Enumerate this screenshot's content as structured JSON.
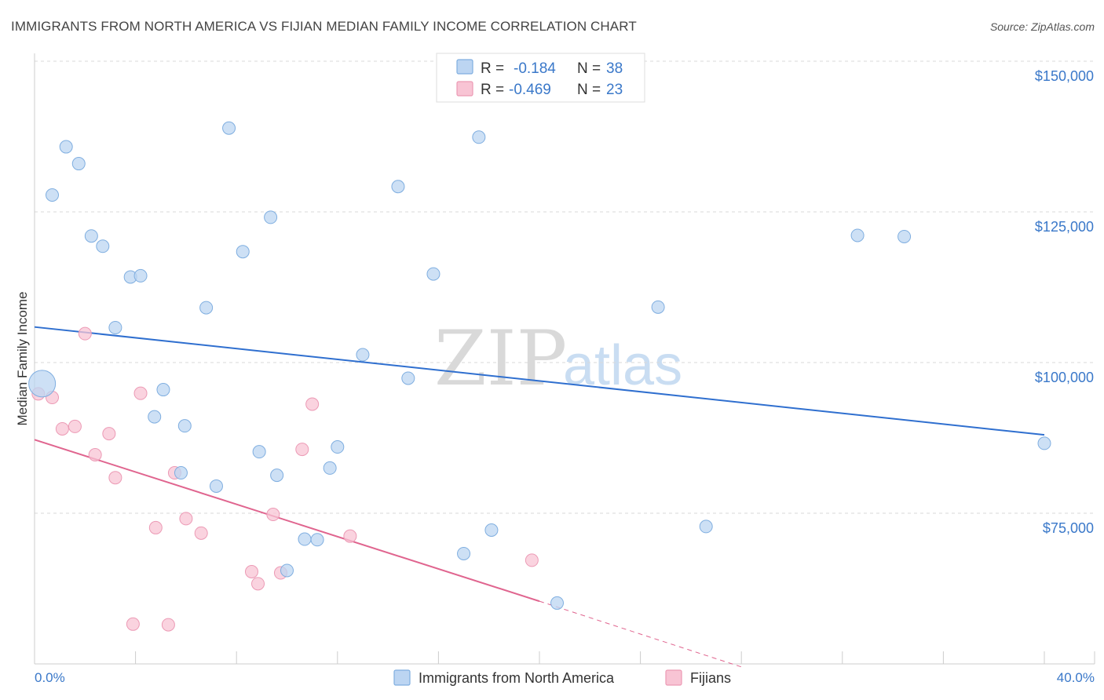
{
  "header": {
    "title": "IMMIGRANTS FROM NORTH AMERICA VS FIJIAN MEDIAN FAMILY INCOME CORRELATION CHART",
    "source": "Source: ZipAtlas.com"
  },
  "watermark": {
    "zip": "ZIP",
    "atlas": "atlas"
  },
  "legend": {
    "series1": {
      "r_label": "R =",
      "r_value": "-0.184",
      "n_label": "N =",
      "n_value": "38"
    },
    "series2": {
      "r_label": "R =",
      "r_value": "-0.469",
      "n_label": "N =",
      "n_value": "23"
    }
  },
  "bottom_legend": {
    "series1": "Immigrants from North America",
    "series2": "Fijians"
  },
  "colors": {
    "blue_fill": "#bcd5f2",
    "blue_stroke": "#7faee0",
    "blue_line": "#2f6fcf",
    "pink_fill": "#f8c4d4",
    "pink_stroke": "#ec9ab5",
    "pink_line": "#e0658f",
    "grid": "#d9d9d9",
    "tick_text": "#3a78c9"
  },
  "chart_data": {
    "type": "scatter",
    "title": "IMMIGRANTS FROM NORTH AMERICA VS FIJIAN MEDIAN FAMILY INCOME CORRELATION CHART",
    "xlabel": "",
    "ylabel": "Median Family Income",
    "xlim": [
      0,
      40
    ],
    "ylim": [
      50000,
      152500
    ],
    "x_tick_labels": [
      "0.0%",
      "40.0%"
    ],
    "y_ticks": [
      {
        "value": 75000,
        "label": "$75,000"
      },
      {
        "value": 100000,
        "label": "$100,000"
      },
      {
        "value": 125000,
        "label": "$125,000"
      },
      {
        "value": 150000,
        "label": "$150,000"
      }
    ],
    "series": [
      {
        "name": "Immigrants from North America",
        "color": "blue",
        "R": -0.184,
        "N": 38,
        "points": [
          {
            "x": 0.3,
            "y": 96500,
            "big": true
          },
          {
            "x": 0.7,
            "y": 127800
          },
          {
            "x": 1.25,
            "y": 135800
          },
          {
            "x": 1.75,
            "y": 133000
          },
          {
            "x": 2.25,
            "y": 121000
          },
          {
            "x": 2.7,
            "y": 119300
          },
          {
            "x": 3.2,
            "y": 105800
          },
          {
            "x": 3.8,
            "y": 114200
          },
          {
            "x": 4.2,
            "y": 114400
          },
          {
            "x": 5.1,
            "y": 95500
          },
          {
            "x": 4.75,
            "y": 91000
          },
          {
            "x": 5.95,
            "y": 89500
          },
          {
            "x": 5.8,
            "y": 81700
          },
          {
            "x": 6.8,
            "y": 109100
          },
          {
            "x": 7.2,
            "y": 79500
          },
          {
            "x": 7.7,
            "y": 138900
          },
          {
            "x": 8.25,
            "y": 118400
          },
          {
            "x": 8.9,
            "y": 85200
          },
          {
            "x": 9.35,
            "y": 124100
          },
          {
            "x": 9.6,
            "y": 81300
          },
          {
            "x": 10.0,
            "y": 65500
          },
          {
            "x": 10.7,
            "y": 70700
          },
          {
            "x": 11.2,
            "y": 70600
          },
          {
            "x": 11.7,
            "y": 82500
          },
          {
            "x": 12.0,
            "y": 86000
          },
          {
            "x": 13.0,
            "y": 101300
          },
          {
            "x": 14.4,
            "y": 129200
          },
          {
            "x": 14.8,
            "y": 97400
          },
          {
            "x": 15.8,
            "y": 114700
          },
          {
            "x": 17.0,
            "y": 68300
          },
          {
            "x": 17.6,
            "y": 137400
          },
          {
            "x": 18.1,
            "y": 72200
          },
          {
            "x": 20.7,
            "y": 60100
          },
          {
            "x": 24.7,
            "y": 109200
          },
          {
            "x": 26.6,
            "y": 72800
          },
          {
            "x": 32.6,
            "y": 121100
          },
          {
            "x": 34.45,
            "y": 120900
          },
          {
            "x": 40.0,
            "y": 86600
          }
        ],
        "trend": {
          "x0": 0,
          "y0": 105900,
          "x1": 40,
          "y1": 88000
        }
      },
      {
        "name": "Fijians",
        "color": "pink",
        "R": -0.469,
        "N": 23,
        "points": [
          {
            "x": 0.15,
            "y": 94800
          },
          {
            "x": 0.7,
            "y": 94200
          },
          {
            "x": 1.1,
            "y": 89000
          },
          {
            "x": 1.6,
            "y": 89400
          },
          {
            "x": 2.0,
            "y": 104800
          },
          {
            "x": 2.4,
            "y": 84700
          },
          {
            "x": 2.95,
            "y": 88200
          },
          {
            "x": 3.2,
            "y": 80900
          },
          {
            "x": 3.9,
            "y": 56600
          },
          {
            "x": 4.2,
            "y": 94900
          },
          {
            "x": 4.8,
            "y": 72600
          },
          {
            "x": 5.3,
            "y": 56500
          },
          {
            "x": 5.55,
            "y": 81700
          },
          {
            "x": 6.0,
            "y": 74100
          },
          {
            "x": 6.6,
            "y": 71700
          },
          {
            "x": 8.6,
            "y": 65300
          },
          {
            "x": 8.85,
            "y": 63300
          },
          {
            "x": 9.45,
            "y": 74800
          },
          {
            "x": 9.75,
            "y": 65100
          },
          {
            "x": 10.6,
            "y": 85600
          },
          {
            "x": 11.0,
            "y": 93100
          },
          {
            "x": 12.5,
            "y": 71200
          },
          {
            "x": 19.7,
            "y": 67200
          }
        ],
        "trend": {
          "x0": 0,
          "y0": 87200,
          "x1": 20.0,
          "y1": 60400
        },
        "trend_dashed": {
          "x0": 20.0,
          "y0": 60400,
          "x1": 28.0,
          "y1": 49500
        }
      }
    ]
  }
}
